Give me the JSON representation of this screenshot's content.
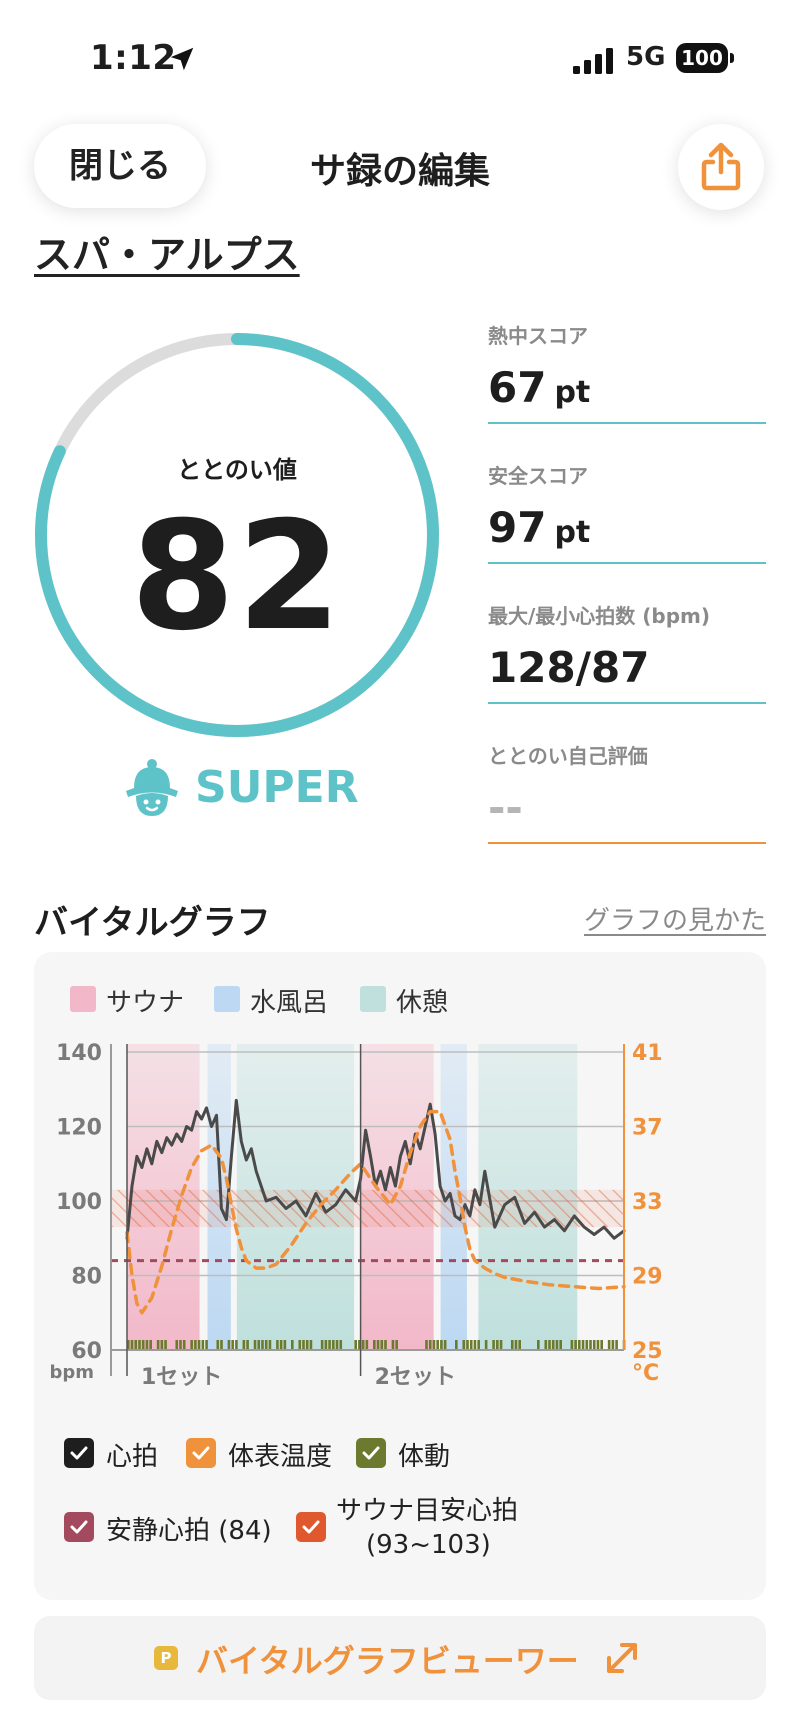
{
  "status_bar": {
    "time": "1:12",
    "network": "5G",
    "battery": "100"
  },
  "header": {
    "close_label": "閉じる",
    "title": "サ録の編集"
  },
  "facility": {
    "name": "スパ・アルプス"
  },
  "gauge": {
    "label": "ととのい値",
    "value": "82",
    "fraction": 0.82,
    "rank": "SUPER",
    "color": "#5ec3c9"
  },
  "stats": {
    "heat_score": {
      "label": "熱中スコア",
      "value": "67",
      "unit": "pt"
    },
    "safety_score": {
      "label": "安全スコア",
      "value": "97",
      "unit": "pt"
    },
    "heart_rate": {
      "label": "最大/最小心拍数 (bpm)",
      "value": "128/87"
    },
    "self_rating": {
      "label": "ととのい自己評価",
      "value": "--"
    }
  },
  "vital_graph": {
    "title": "バイタルグラフ",
    "help_link": "グラフの見かた",
    "phase_legend": [
      {
        "label": "サウナ",
        "color": "#f2b8c9"
      },
      {
        "label": "水風呂",
        "color": "#bcd8f2"
      },
      {
        "label": "休憩",
        "color": "#bfe0dd"
      }
    ],
    "sets": [
      "1セット",
      "2セット"
    ],
    "checkboxes": [
      {
        "label": "心拍",
        "color": "#1e1e1e",
        "checked": true
      },
      {
        "label": "体表温度",
        "color": "#f0913b",
        "checked": true
      },
      {
        "label": "体動",
        "color": "#6b7a2f",
        "checked": true
      },
      {
        "label": "安静心拍 (84)",
        "color": "#a34a5e",
        "checked": true
      },
      {
        "label": "サウナ目安心拍",
        "sublabel": "(93~103)",
        "color": "#e0582d",
        "checked": true
      }
    ]
  },
  "chart_data": {
    "type": "line",
    "left_axis": {
      "label": "bpm",
      "ticks": [
        "140",
        "120",
        "100",
        "80",
        "60"
      ],
      "ylim": [
        60,
        140
      ]
    },
    "right_axis": {
      "label": "°C",
      "ticks": [
        "41",
        "37",
        "33",
        "29",
        "25"
      ],
      "ylim": [
        25,
        41
      ]
    },
    "x_domain": [
      0,
      100
    ],
    "phases": [
      {
        "type": "sauna",
        "start": 0,
        "end": 14.6
      },
      {
        "type": "cold",
        "start": 16.2,
        "end": 20.9
      },
      {
        "type": "rest",
        "start": 22.1,
        "end": 45.7
      },
      {
        "type": "sauna",
        "start": 47.0,
        "end": 61.7
      },
      {
        "type": "cold",
        "start": 63.1,
        "end": 68.4
      },
      {
        "type": "rest",
        "start": 70.7,
        "end": 90.6
      }
    ],
    "set_dividers": [
      0,
      47.0
    ],
    "resting_hr": 84,
    "target_hr_range": [
      93,
      103
    ],
    "series": [
      {
        "name": "心拍",
        "color": "#4a4a4a",
        "x": [
          0,
          1,
          2,
          3,
          4,
          5,
          6,
          7,
          8,
          9,
          10,
          11,
          12,
          13,
          14,
          15,
          16,
          17,
          18,
          19,
          20,
          21,
          22,
          23,
          24,
          25,
          26,
          27,
          28,
          30,
          32,
          34,
          36,
          38,
          40,
          42,
          44,
          46,
          47,
          48,
          49,
          50,
          51,
          52,
          53,
          54,
          55,
          56,
          57,
          58,
          59,
          60,
          61,
          62,
          63,
          64,
          65,
          66,
          67,
          68,
          69,
          70,
          71,
          72,
          74,
          76,
          78,
          80,
          82,
          84,
          86,
          88,
          90,
          92,
          94,
          96,
          98,
          100
        ],
        "values": [
          90,
          104,
          112,
          109,
          114,
          110,
          116,
          113,
          117,
          115,
          118,
          116,
          120,
          119,
          124,
          122,
          125,
          120,
          123,
          98,
          95,
          112,
          127,
          116,
          111,
          114,
          108,
          104,
          100,
          101,
          98,
          100,
          96,
          102,
          97,
          99,
          103,
          100,
          106,
          119,
          112,
          104,
          108,
          103,
          109,
          104,
          112,
          116,
          110,
          118,
          114,
          120,
          126,
          118,
          104,
          100,
          102,
          96,
          95,
          99,
          96,
          103,
          99,
          108,
          93,
          99,
          101,
          94,
          97,
          93,
          95,
          92,
          96,
          93,
          91,
          93,
          90,
          92
        ]
      },
      {
        "name": "体表温度",
        "color": "#f0913b",
        "x": [
          0,
          1,
          2,
          3,
          5,
          7,
          9,
          11,
          13,
          15,
          17,
          19,
          20,
          21,
          22,
          23,
          24,
          26,
          28,
          30,
          33,
          36,
          39,
          42,
          45,
          47,
          50,
          53,
          55,
          57,
          59,
          61,
          63,
          65,
          66,
          67,
          68,
          69,
          70,
          72,
          74,
          76,
          80,
          85,
          90,
          95,
          100
        ],
        "values": [
          31.3,
          29,
          27.5,
          27,
          27.8,
          29.5,
          31.5,
          33.3,
          34.8,
          35.7,
          36.0,
          35.3,
          34.2,
          32.8,
          31.5,
          30.5,
          29.8,
          29.4,
          29.4,
          29.6,
          30.6,
          31.8,
          32.8,
          33.6,
          34.5,
          35.0,
          33.8,
          32.8,
          33.8,
          35.6,
          37.0,
          37.8,
          37.8,
          36.3,
          34.6,
          33.2,
          31.6,
          30.4,
          29.8,
          29.4,
          29.1,
          28.9,
          28.7,
          28.5,
          28.4,
          28.3,
          28.4
        ]
      }
    ]
  }
}
